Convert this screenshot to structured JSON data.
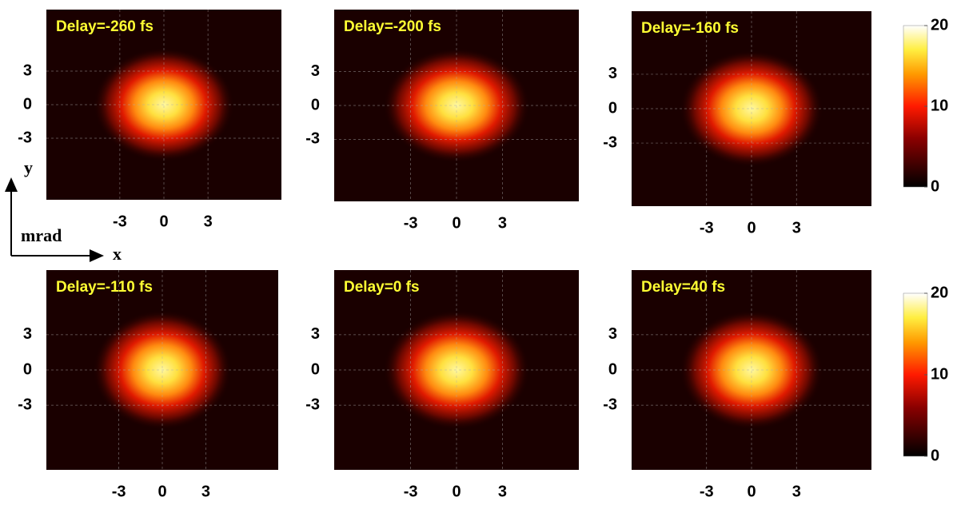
{
  "chart_data": [
    {
      "type": "heatmap",
      "title": "Delay=-260 fs",
      "xlim": [
        -8,
        8
      ],
      "ylim": [
        -8.5,
        8.5
      ],
      "xticks": [
        -3,
        0,
        3
      ],
      "yticks": [
        -3,
        0,
        3
      ],
      "grid": true
    },
    {
      "type": "heatmap",
      "title": "Delay=-200 fs",
      "xlim": [
        -8,
        8
      ],
      "ylim": [
        -8.5,
        8.5
      ],
      "xticks": [
        -3,
        0,
        3
      ],
      "yticks": [
        -3,
        0,
        3
      ],
      "grid": true
    },
    {
      "type": "heatmap",
      "title": "Delay=-160 fs",
      "xlim": [
        -8,
        8
      ],
      "ylim": [
        -8.5,
        8.5
      ],
      "xticks": [
        -3,
        0,
        3
      ],
      "yticks": [
        -3,
        0,
        3
      ],
      "grid": true
    },
    {
      "type": "heatmap",
      "title": "Delay=-110 fs",
      "xlim": [
        -8,
        8
      ],
      "ylim": [
        -8.5,
        8.5
      ],
      "xticks": [
        -3,
        0,
        3
      ],
      "yticks": [
        -3,
        0,
        3
      ],
      "grid": true
    },
    {
      "type": "heatmap",
      "title": "Delay=0 fs",
      "xlim": [
        -8,
        8
      ],
      "ylim": [
        -8.5,
        8.5
      ],
      "xticks": [
        -3,
        0,
        3
      ],
      "yticks": [
        -3,
        0,
        3
      ],
      "grid": true
    },
    {
      "type": "heatmap",
      "title": "Delay=40 fs",
      "xlim": [
        -8,
        8
      ],
      "ylim": [
        -8.5,
        8.5
      ],
      "xticks": [
        -3,
        0,
        3
      ],
      "yticks": [
        -3,
        0,
        3
      ],
      "grid": true
    },
    {
      "type": "colorbar",
      "zlim": [
        0,
        20
      ],
      "zticks": [
        0,
        10,
        20
      ]
    },
    {
      "type": "colorbar",
      "zlim": [
        0,
        20
      ],
      "zticks": [
        0,
        10,
        20
      ]
    }
  ],
  "axis_labels": {
    "y": "y",
    "x": "x",
    "unit": "mrad"
  }
}
